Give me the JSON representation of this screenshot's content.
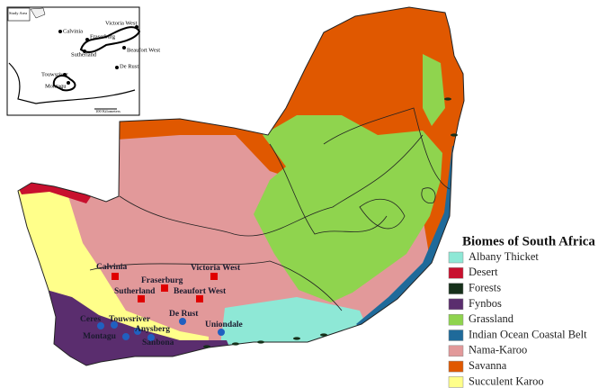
{
  "legend": {
    "title": "Biomes of South Africa",
    "items": [
      {
        "name": "Albany Thicket",
        "color": "#8ee8d6"
      },
      {
        "name": "Desert",
        "color": "#c8102e"
      },
      {
        "name": "Forests",
        "color": "#16301a"
      },
      {
        "name": "Fynbos",
        "color": "#5a2d6e"
      },
      {
        "name": "Grassland",
        "color": "#8fd44e"
      },
      {
        "name": "Indian Ocean Coastal Belt",
        "color": "#1f6a9a"
      },
      {
        "name": "Nama-Karoo",
        "color": "#e2999a"
      },
      {
        "name": "Savanna",
        "color": "#e05800"
      },
      {
        "name": "Succulent Karoo",
        "color": "#ffff8a"
      }
    ]
  },
  "places": [
    "Calvinia",
    "Fraserburg",
    "Victoria West",
    "Sutherland",
    "Beaufort West",
    "Ceres",
    "Touwsriver",
    "De Rust",
    "Uniondale",
    "Montagu",
    "Anysberg",
    "Sanbona"
  ],
  "inset": {
    "labels": [
      "Study Area",
      "Calvinia",
      "Victoria West",
      "Fraserburg",
      "Sutherland",
      "Beaufort West",
      "De Rust",
      "Touwsriver",
      "Montagu",
      "100 Kilometers"
    ]
  }
}
